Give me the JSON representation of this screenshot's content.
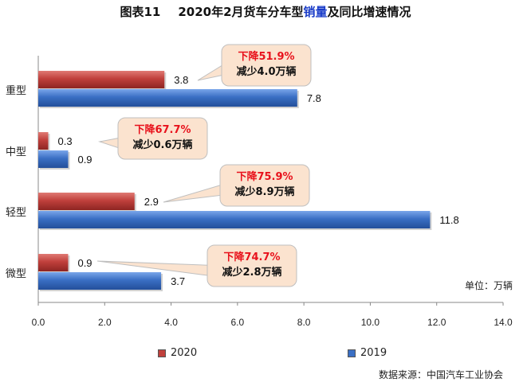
{
  "title": {
    "prefix": "图表11",
    "main_before": "2020年2月货车分车型",
    "main_highlight": "销量",
    "main_after": "及同比增速情况"
  },
  "unit_label": "单位：万辆",
  "source_label": "数据来源：中国汽车工业协会",
  "colors": {
    "series_2020": "#c0403c",
    "series_2019": "#3a6fc4",
    "callout_fill": "#fbe3cf",
    "callout_stroke": "#bfbfbf",
    "highlight_red": "#e8121c"
  },
  "chart_data": {
    "type": "bar",
    "orientation": "horizontal",
    "categories": [
      "重型",
      "中型",
      "轻型",
      "微型"
    ],
    "series": [
      {
        "name": "2020",
        "values": [
          3.8,
          0.3,
          2.9,
          0.9
        ]
      },
      {
        "name": "2019",
        "values": [
          7.8,
          0.9,
          11.8,
          3.7
        ]
      }
    ],
    "xlim": [
      0,
      14
    ],
    "xticks": [
      "0.0",
      "2.0",
      "4.0",
      "6.0",
      "8.0",
      "10.0",
      "12.0",
      "14.0"
    ],
    "grid": false,
    "legend_position": "bottom"
  },
  "annotations": [
    {
      "decline": "下降51.9%",
      "reduction": "减少4.0万辆"
    },
    {
      "decline": "下降67.7%",
      "reduction": "减少0.6万辆"
    },
    {
      "decline": "下降75.9%",
      "reduction": "减少8.9万辆"
    },
    {
      "decline": "下降74.7%",
      "reduction": "减少2.8万辆"
    }
  ]
}
